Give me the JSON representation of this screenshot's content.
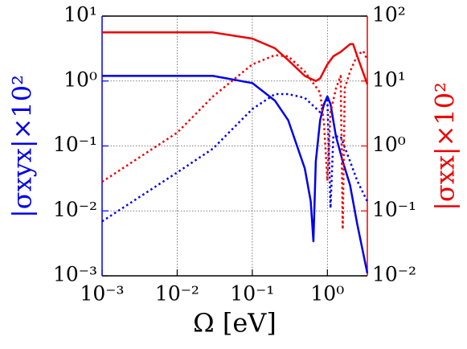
{
  "chart_data": {
    "type": "line",
    "xlabel": "Ω [eV]",
    "ylabel": "|σxyx|×10²",
    "y2label": "|σxx|×10²",
    "xscale": "log",
    "yscale": "log",
    "grid": true,
    "xlim": [
      0.001,
      3.4
    ],
    "ylim": [
      0.001,
      10
    ],
    "y2lim": [
      0.01,
      100
    ],
    "xticks": [
      {
        "value": 0.001,
        "label": "10⁻³"
      },
      {
        "value": 0.01,
        "label": "10⁻²"
      },
      {
        "value": 0.1,
        "label": "10⁻¹"
      },
      {
        "value": 1,
        "label": "10⁰"
      }
    ],
    "yticks": [
      {
        "value": 0.001,
        "label": "10⁻³"
      },
      {
        "value": 0.01,
        "label": "10⁻²"
      },
      {
        "value": 0.1,
        "label": "10⁻¹"
      },
      {
        "value": 1,
        "label": "10⁰"
      },
      {
        "value": 10,
        "label": "10¹"
      }
    ],
    "y2ticks": [
      {
        "value": 0.01,
        "label": "10⁻²"
      },
      {
        "value": 0.1,
        "label": "10⁻¹"
      },
      {
        "value": 1,
        "label": "10⁰"
      },
      {
        "value": 10,
        "label": "10¹"
      },
      {
        "value": 100,
        "label": "10²"
      }
    ],
    "ycolor": "#0000ee",
    "y2color": "#ee0000",
    "series": [
      {
        "color": "#0000ee",
        "style": "solid",
        "x": [
          0.001,
          0.003,
          0.01,
          0.03,
          0.1,
          0.2,
          0.3,
          0.5,
          0.6,
          0.65,
          0.7,
          0.8,
          0.9,
          1.0,
          1.1,
          1.3,
          1.6,
          2,
          2.5,
          3.4
        ],
        "values": [
          1.2,
          1.2,
          1.2,
          1.2,
          0.93,
          0.5,
          0.25,
          0.045,
          0.014,
          0.0034,
          0.058,
          0.25,
          0.44,
          0.58,
          0.44,
          0.14,
          0.058,
          0.025,
          0.0062,
          0.0011
        ]
      },
      {
        "color": "#0000ee",
        "style": "dotted",
        "x": [
          0.001,
          0.01,
          0.03,
          0.1,
          0.2,
          0.3,
          0.5,
          0.8,
          1.0,
          1.1,
          1.2,
          1.5,
          2,
          2.5,
          3.4
        ],
        "values": [
          0.0069,
          0.039,
          0.091,
          0.37,
          0.63,
          0.63,
          0.55,
          0.33,
          0.55,
          0.011,
          0.14,
          0.14,
          0.058,
          0.029,
          0.014
        ]
      },
      {
        "color": "#ee0000",
        "style": "solid",
        "axis": "y2",
        "x": [
          0.001,
          0.01,
          0.03,
          0.1,
          0.2,
          0.3,
          0.5,
          0.7,
          0.8,
          1.0,
          1.2,
          1.5,
          2,
          2.2,
          2.5,
          3.4
        ],
        "values": [
          56,
          56,
          56,
          45,
          32,
          21,
          12,
          10,
          11,
          18,
          24,
          28,
          37,
          37,
          24,
          8.9
        ]
      },
      {
        "color": "#ee0000",
        "style": "dotted",
        "axis": "y2",
        "x": [
          0.001,
          0.01,
          0.03,
          0.1,
          0.2,
          0.3,
          0.5,
          0.8,
          0.9,
          1.0,
          1.1,
          1.3,
          1.5,
          1.6,
          1.7,
          2,
          2.5,
          3,
          3.4
        ],
        "values": [
          0.28,
          1.6,
          5.8,
          18,
          25,
          24,
          14,
          6.6,
          2.2,
          0.29,
          3.3,
          7.7,
          12,
          0.052,
          7.7,
          14,
          25,
          29,
          21
        ]
      }
    ]
  }
}
